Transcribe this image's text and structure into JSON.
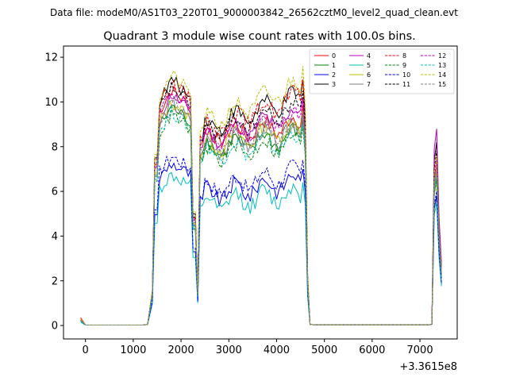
{
  "figure": {
    "suptitle": "Data file: modeM0/AS1T03_220T01_9000003842_26562cztM0_level2_quad_clean.evt"
  },
  "chart_data": {
    "type": "line",
    "title": "Quadrant 3 module wise count rates with 100.0s bins.",
    "xlabel": "",
    "ylabel": "",
    "x_offset_label": "+3.3615e8",
    "xlim": [
      -460,
      7780
    ],
    "ylim": [
      -0.6,
      12.5
    ],
    "x_ticks": [
      0,
      1000,
      2000,
      3000,
      4000,
      5000,
      6000,
      7000
    ],
    "x_tick_labels": [
      "0",
      "1000",
      "2000",
      "3000",
      "4000",
      "5000",
      "6000",
      "7000"
    ],
    "y_ticks": [
      0,
      2,
      4,
      6,
      8,
      10,
      12
    ],
    "y_tick_labels": [
      "0",
      "2",
      "4",
      "6",
      "8",
      "10",
      "12"
    ],
    "legend_position": "top-right",
    "segments": [
      {
        "start": -100,
        "end": 0,
        "step": 100
      },
      {
        "start": 0,
        "end": 1300,
        "step": 100
      },
      {
        "start": 1300,
        "end": 4700,
        "step": 50
      },
      {
        "start": 4700,
        "end": 7250,
        "step": 100
      },
      {
        "start": 7250,
        "end": 7450,
        "step": 50
      }
    ],
    "gaps_description": "flat zero-count stretch between 0 and 1300, and between 4700 and 7200",
    "series": [
      {
        "name": "0",
        "color": "#ff0000",
        "dash": "solid",
        "base": 9.6,
        "pre": 0.35,
        "late": 9.8,
        "spike": 7.2
      },
      {
        "name": "1",
        "color": "#008000",
        "dash": "solid",
        "base": 8.9,
        "pre": 0.25,
        "late": 9.2,
        "spike": 6.6
      },
      {
        "name": "2",
        "color": "#0000ff",
        "dash": "solid",
        "base": 6.6,
        "pre": 0.2,
        "late": 7.0,
        "spike": 5.8
      },
      {
        "name": "3",
        "color": "#000000",
        "dash": "solid",
        "base": 10.0,
        "pre": 0.3,
        "late": 11.0,
        "spike": 8.2
      },
      {
        "name": "4",
        "color": "#bf00bf",
        "dash": "solid",
        "base": 9.4,
        "pre": 0.25,
        "late": 10.2,
        "spike": 8.8
      },
      {
        "name": "5",
        "color": "#00bfbf",
        "dash": "solid",
        "base": 6.1,
        "pre": 0.15,
        "late": 6.4,
        "spike": 5.5
      },
      {
        "name": "6",
        "color": "#bfbf00",
        "dash": "solid",
        "base": 9.1,
        "pre": 0.3,
        "late": 9.6,
        "spike": 7.0
      },
      {
        "name": "7",
        "color": "#808080",
        "dash": "solid",
        "base": 9.0,
        "pre": 0.25,
        "late": 9.4,
        "spike": 6.9
      },
      {
        "name": "8",
        "color": "#ff0000",
        "dash": "dashed",
        "base": 9.9,
        "pre": 0.3,
        "late": 11.0,
        "spike": 7.5
      },
      {
        "name": "9",
        "color": "#008000",
        "dash": "dashed",
        "base": 8.6,
        "pre": 0.2,
        "late": 8.9,
        "spike": 6.5
      },
      {
        "name": "10",
        "color": "#0000ff",
        "dash": "dashed",
        "base": 6.9,
        "pre": 0.2,
        "late": 7.4,
        "spike": 6.0
      },
      {
        "name": "11",
        "color": "#000000",
        "dash": "dashed",
        "base": 9.7,
        "pre": 0.25,
        "late": 10.5,
        "spike": 7.8
      },
      {
        "name": "12",
        "color": "#bf00bf",
        "dash": "dashed",
        "base": 9.5,
        "pre": 0.25,
        "late": 10.0,
        "spike": 7.4
      },
      {
        "name": "13",
        "color": "#00bfbf",
        "dash": "dashed",
        "base": 8.7,
        "pre": 0.2,
        "late": 9.0,
        "spike": 6.7
      },
      {
        "name": "14",
        "color": "#bfbf00",
        "dash": "dashed",
        "base": 10.2,
        "pre": 0.3,
        "late": 11.6,
        "spike": 7.6
      },
      {
        "name": "15",
        "color": "#808080",
        "dash": "dashed",
        "base": 9.2,
        "pre": 0.25,
        "late": 9.6,
        "spike": 7.1
      }
    ]
  }
}
